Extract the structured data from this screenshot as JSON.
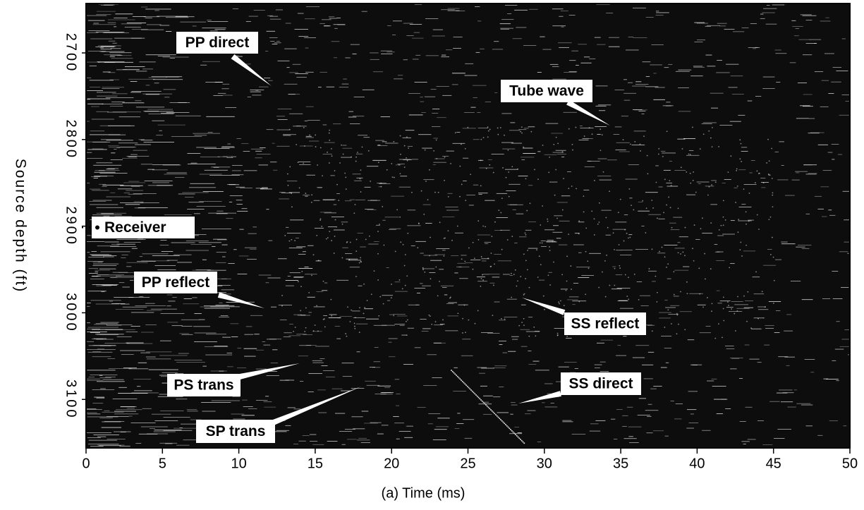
{
  "chart_data": {
    "type": "image",
    "x_label": "(a) Time (ms)",
    "y_label": "Source depth (ft)",
    "xlim": [
      0,
      50
    ],
    "xticks": [
      0,
      5,
      10,
      15,
      20,
      25,
      30,
      35,
      40,
      45,
      50
    ],
    "ylim": [
      3156,
      2643
    ],
    "yticks": [
      2700,
      2800,
      2900,
      3000,
      3100
    ],
    "annotations": [
      "PP direct",
      "Tube wave",
      "Receiver",
      "PP reflect",
      "SS reflect",
      "PS trans",
      "SS direct",
      "SP trans"
    ]
  }
}
